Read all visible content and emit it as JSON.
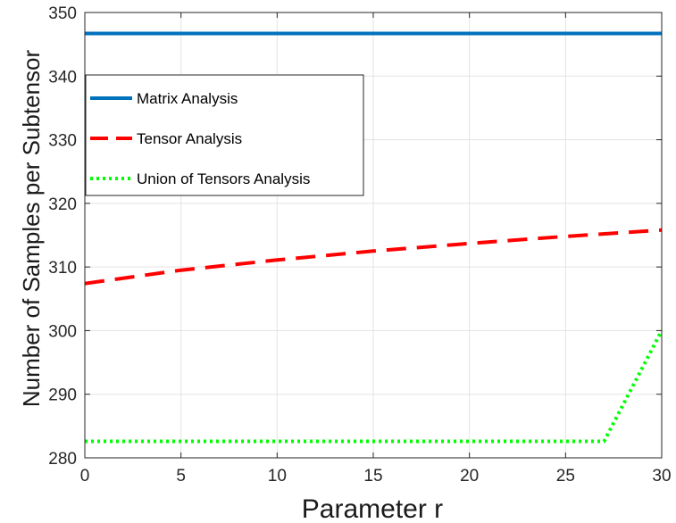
{
  "chart_data": {
    "type": "line",
    "title": "",
    "xlabel": "Parameter r",
    "ylabel": "Number of Samples per Subtensor",
    "xlim": [
      0,
      30
    ],
    "ylim": [
      280,
      350
    ],
    "xticks": [
      "0",
      "5",
      "10",
      "15",
      "20",
      "25",
      "30"
    ],
    "yticks": [
      "280",
      "290",
      "300",
      "310",
      "320",
      "330",
      "340",
      "350"
    ],
    "grid": true,
    "legend_position": "upper-left",
    "series": [
      {
        "name": "Matrix Analysis",
        "color": "#0072BD",
        "style": "solid",
        "x": [
          0,
          30
        ],
        "y": [
          346.7,
          346.7
        ]
      },
      {
        "name": "Tensor Analysis",
        "color": "#FF0000",
        "style": "dashed",
        "x": [
          0,
          5,
          10,
          15,
          20,
          25,
          30
        ],
        "y": [
          307.4,
          309.5,
          311.1,
          312.5,
          313.7,
          314.8,
          315.8
        ]
      },
      {
        "name": "Union of Tensors Analysis",
        "color": "#00FF00",
        "style": "dotted",
        "x": [
          0,
          5,
          10,
          15,
          20,
          25,
          27,
          30
        ],
        "y": [
          282.6,
          282.6,
          282.6,
          282.6,
          282.6,
          282.6,
          282.6,
          300
        ]
      }
    ]
  }
}
